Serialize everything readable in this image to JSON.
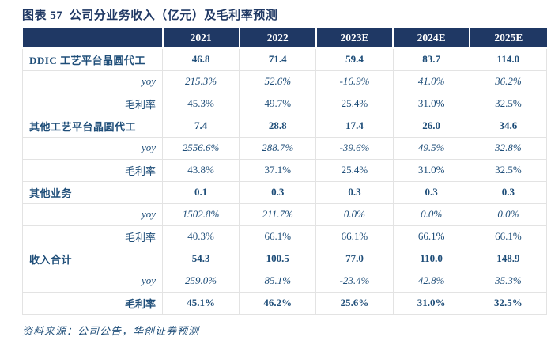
{
  "title": "图表 57  公司分业务收入（亿元）及毛利率预测",
  "source_note": "资料来源：公司公告，华创证券预测",
  "colors": {
    "header_bg": "#1f3864",
    "title_text": "#1f3864",
    "body_text": "#1f4e79",
    "border": "#e3e3e3"
  },
  "chart_data": {
    "type": "table",
    "title": "公司分业务收入（亿元）及毛利率预测",
    "unit": "亿元",
    "columns": [
      "2021",
      "2022",
      "2023E",
      "2024E",
      "2025E"
    ],
    "rows": [
      {
        "label": "DDIC 工艺平台晶圆代工",
        "row_type": "segment",
        "values": [
          "46.8",
          "71.4",
          "59.4",
          "83.7",
          "114.0"
        ]
      },
      {
        "label": "yoy",
        "row_type": "yoy",
        "values": [
          "215.3%",
          "52.6%",
          "-16.9%",
          "41.0%",
          "36.2%"
        ]
      },
      {
        "label": "毛利率",
        "row_type": "margin",
        "values": [
          "45.3%",
          "49.7%",
          "25.4%",
          "31.0%",
          "32.5%"
        ]
      },
      {
        "label": "其他工艺平台晶圆代工",
        "row_type": "segment",
        "values": [
          "7.4",
          "28.8",
          "17.4",
          "26.0",
          "34.6"
        ]
      },
      {
        "label": "yoy",
        "row_type": "yoy",
        "values": [
          "2556.6%",
          "288.7%",
          "-39.6%",
          "49.5%",
          "32.8%"
        ]
      },
      {
        "label": "毛利率",
        "row_type": "margin",
        "values": [
          "43.8%",
          "37.1%",
          "25.4%",
          "31.0%",
          "32.5%"
        ]
      },
      {
        "label": "其他业务",
        "row_type": "segment",
        "values": [
          "0.1",
          "0.3",
          "0.3",
          "0.3",
          "0.3"
        ]
      },
      {
        "label": "yoy",
        "row_type": "yoy",
        "values": [
          "1502.8%",
          "211.7%",
          "0.0%",
          "0.0%",
          "0.0%"
        ]
      },
      {
        "label": "毛利率",
        "row_type": "margin",
        "values": [
          "40.3%",
          "66.1%",
          "66.1%",
          "66.1%",
          "66.1%"
        ]
      },
      {
        "label": "收入合计",
        "row_type": "segment",
        "values": [
          "54.3",
          "100.5",
          "77.0",
          "110.0",
          "148.9"
        ]
      },
      {
        "label": "yoy",
        "row_type": "yoy",
        "values": [
          "259.0%",
          "85.1%",
          "-23.4%",
          "42.8%",
          "35.3%"
        ]
      },
      {
        "label": "毛利率",
        "row_type": "margin_total",
        "values": [
          "45.1%",
          "46.2%",
          "25.6%",
          "31.0%",
          "32.5%"
        ]
      }
    ]
  }
}
